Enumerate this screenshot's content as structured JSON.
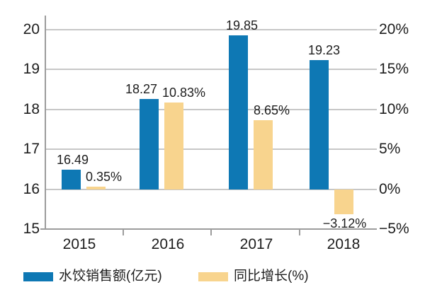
{
  "chart_data": {
    "type": "bar",
    "title": "",
    "categories": [
      "2015",
      "2016",
      "2017",
      "2018"
    ],
    "series": [
      {
        "name": "水饺销售额(亿元)",
        "axis": "left",
        "color": "#0e78b4",
        "values": [
          16.49,
          18.27,
          19.85,
          19.23
        ],
        "data_labels": [
          "16.49",
          "18.27",
          "19.85",
          "19.23"
        ]
      },
      {
        "name": "同比增长(%)",
        "axis": "right",
        "color": "#f8d48e",
        "values": [
          0.35,
          10.83,
          8.65,
          -3.12
        ],
        "data_labels": [
          "0.35%",
          "10.83%",
          "8.65%",
          "−3.12%"
        ]
      }
    ],
    "axis_left": {
      "min": 15,
      "max": 20,
      "tick_step": 1,
      "ticks": [
        "15",
        "16",
        "17",
        "18",
        "19",
        "20"
      ],
      "bar_baseline": 16
    },
    "axis_right": {
      "min": -5,
      "max": 20,
      "tick_step": 5,
      "ticks": [
        "−5%",
        "0%",
        "5%",
        "10%",
        "15%",
        "20%"
      ],
      "bar_baseline": 0
    },
    "grid": "horizontal-only",
    "legend_position": "bottom"
  },
  "colors": {
    "bar_blue": "#0e78b4",
    "bar_yellow": "#f8d48e",
    "gridline": "#c7c7c7",
    "axis_line": "#9c9c9c",
    "text": "#1d1d1d",
    "background": "#ffffff"
  }
}
